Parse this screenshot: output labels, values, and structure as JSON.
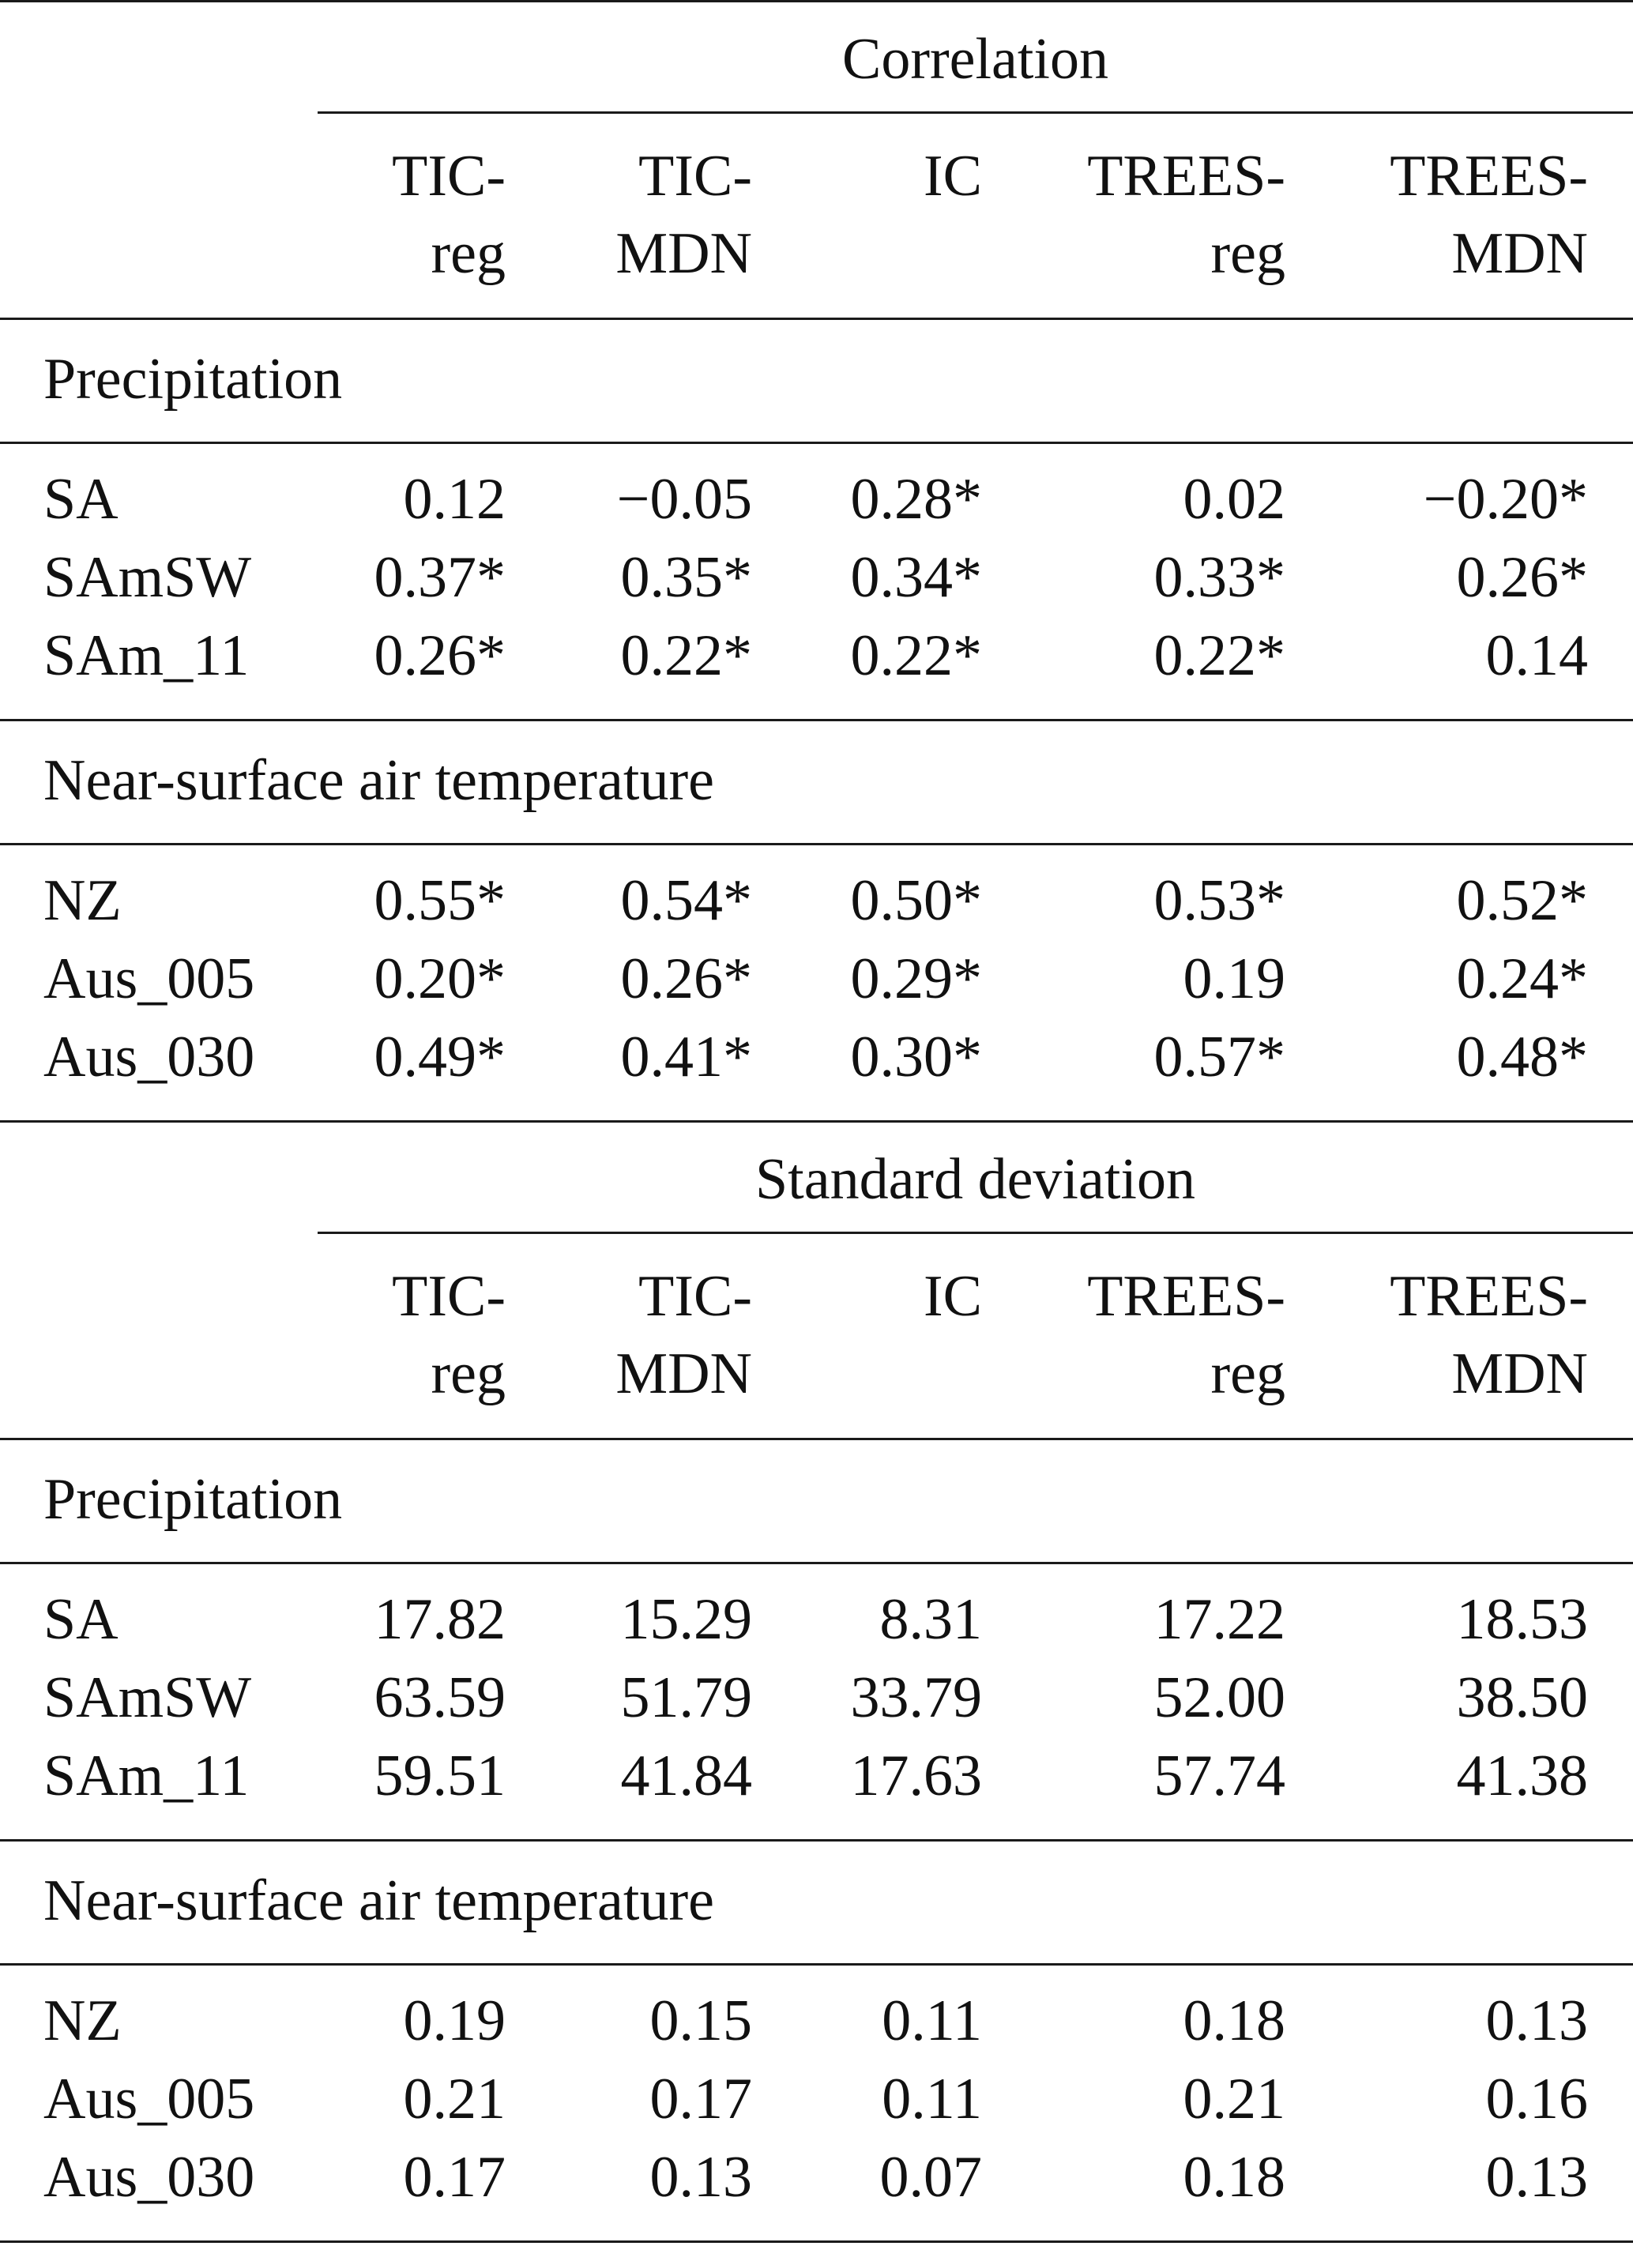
{
  "sections": [
    {
      "title": "Correlation",
      "columns": [
        [
          "TIC-",
          "reg"
        ],
        [
          "TIC-",
          "MDN"
        ],
        [
          "IC",
          ""
        ],
        [
          "TREES-",
          "reg"
        ],
        [
          "TREES-",
          "MDN"
        ]
      ],
      "groups": [
        {
          "name": "Precipitation",
          "rows": [
            {
              "label": "SA",
              "values": [
                "0.12",
                "−0.05",
                "0.28*",
                "0.02",
                "−0.20*"
              ]
            },
            {
              "label": "SAmSW",
              "values": [
                "0.37*",
                "0.35*",
                "0.34*",
                "0.33*",
                "0.26*"
              ]
            },
            {
              "label": "SAm_11",
              "values": [
                "0.26*",
                "0.22*",
                "0.22*",
                "0.22*",
                "0.14"
              ]
            }
          ]
        },
        {
          "name": "Near-surface air temperature",
          "rows": [
            {
              "label": "NZ",
              "values": [
                "0.55*",
                "0.54*",
                "0.50*",
                "0.53*",
                "0.52*"
              ]
            },
            {
              "label": "Aus_005",
              "values": [
                "0.20*",
                "0.26*",
                "0.29*",
                "0.19",
                "0.24*"
              ]
            },
            {
              "label": "Aus_030",
              "values": [
                "0.49*",
                "0.41*",
                "0.30*",
                "0.57*",
                "0.48*"
              ]
            }
          ]
        }
      ]
    },
    {
      "title": "Standard deviation",
      "columns": [
        [
          "TIC-",
          "reg"
        ],
        [
          "TIC-",
          "MDN"
        ],
        [
          "IC",
          ""
        ],
        [
          "TREES-",
          "reg"
        ],
        [
          "TREES-",
          "MDN"
        ]
      ],
      "groups": [
        {
          "name": "Precipitation",
          "rows": [
            {
              "label": "SA",
              "values": [
                "17.82",
                "15.29",
                "8.31",
                "17.22",
                "18.53"
              ]
            },
            {
              "label": "SAmSW",
              "values": [
                "63.59",
                "51.79",
                "33.79",
                "52.00",
                "38.50"
              ]
            },
            {
              "label": "SAm_11",
              "values": [
                "59.51",
                "41.84",
                "17.63",
                "57.74",
                "41.38"
              ]
            }
          ]
        },
        {
          "name": "Near-surface air temperature",
          "rows": [
            {
              "label": "NZ",
              "values": [
                "0.19",
                "0.15",
                "0.11",
                "0.18",
                "0.13"
              ]
            },
            {
              "label": "Aus_005",
              "values": [
                "0.21",
                "0.17",
                "0.11",
                "0.21",
                "0.16"
              ]
            },
            {
              "label": "Aus_030",
              "values": [
                "0.17",
                "0.13",
                "0.07",
                "0.18",
                "0.13"
              ]
            }
          ]
        }
      ]
    }
  ]
}
